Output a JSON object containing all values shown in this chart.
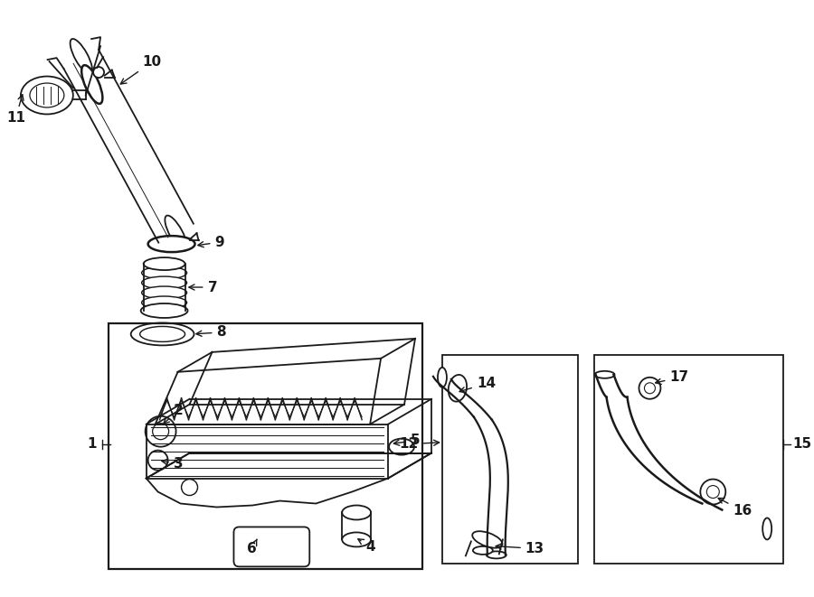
{
  "bg_color": "#ffffff",
  "line_color": "#1a1a1a",
  "lw": 1.3,
  "fs": 11,
  "fig_w": 9.0,
  "fig_h": 6.61,
  "dpi": 100
}
